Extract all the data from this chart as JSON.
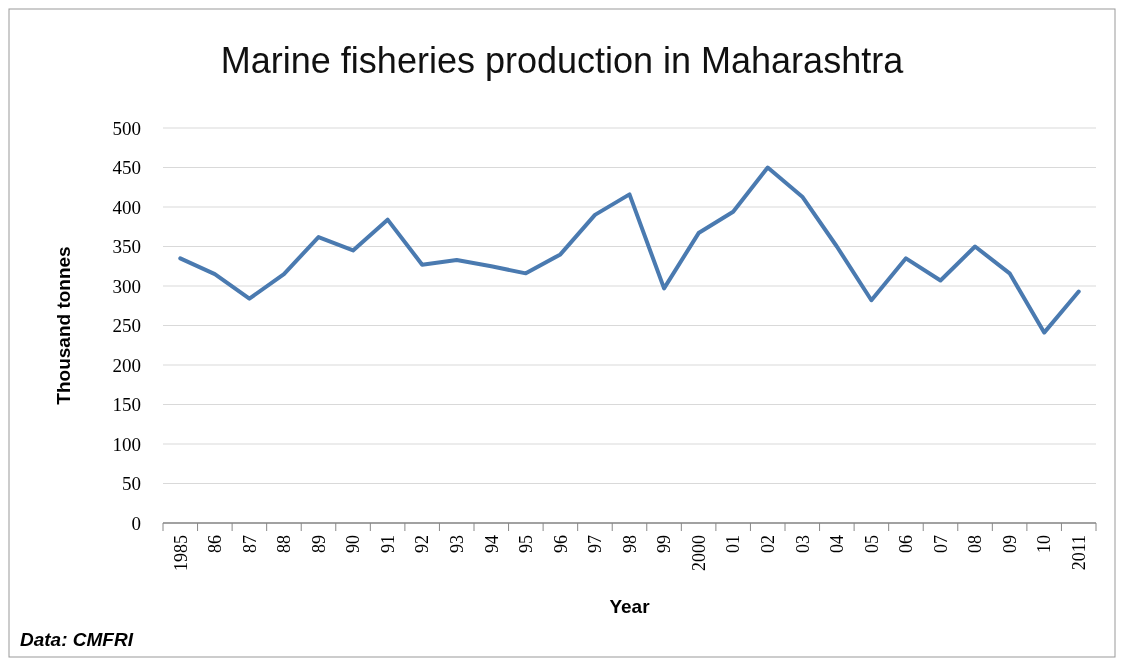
{
  "chart_data": {
    "type": "line",
    "title": "Marine fisheries production in Maharashtra",
    "xlabel": "Year",
    "ylabel": "Thousand tonnes",
    "categories": [
      "1985",
      "86",
      "87",
      "88",
      "89",
      "90",
      "91",
      "92",
      "93",
      "94",
      "95",
      "96",
      "97",
      "98",
      "99",
      "2000",
      "01",
      "02",
      "03",
      "04",
      "05",
      "06",
      "07",
      "08",
      "09",
      "10",
      "2011"
    ],
    "series": [
      {
        "color": "#4a7ab0",
        "values": [
          335,
          315,
          284,
          315,
          362,
          345,
          384,
          327,
          333,
          325,
          316,
          340,
          390,
          416,
          297,
          367,
          394,
          450,
          413,
          350,
          282,
          335,
          307,
          350,
          316,
          241,
          293
        ]
      }
    ],
    "ylim": [
      0,
      500
    ],
    "yticks": [
      0,
      50,
      100,
      150,
      200,
      250,
      300,
      350,
      400,
      450,
      500
    ],
    "grid": "y",
    "marker": "none",
    "line_style": "solid",
    "annotations": [
      "Data: CMFRI"
    ]
  }
}
